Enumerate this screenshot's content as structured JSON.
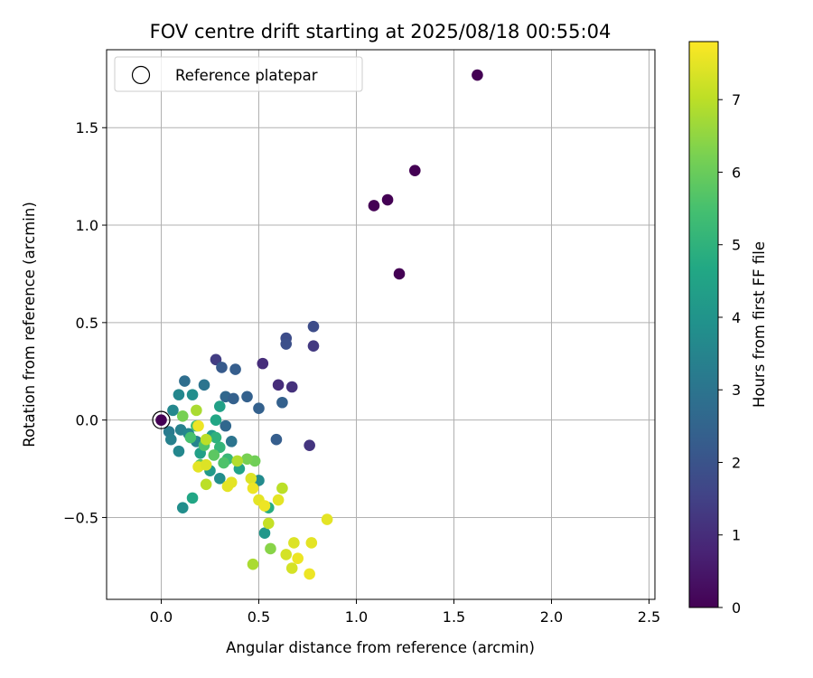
{
  "chart_data": {
    "type": "scatter",
    "title": "FOV centre drift starting at 2025/08/18 00:55:04",
    "xlabel": "Angular distance from reference (arcmin)",
    "ylabel": "Rotation from reference (arcmin)",
    "xlim": [
      -0.28,
      2.53
    ],
    "ylim": [
      -0.92,
      1.9
    ],
    "xticks": [
      0.0,
      0.5,
      1.0,
      1.5,
      2.0,
      2.5
    ],
    "xtick_labels": [
      "0.0",
      "0.5",
      "1.0",
      "1.5",
      "2.0",
      "2.5"
    ],
    "yticks": [
      -0.5,
      0.0,
      0.5,
      1.0,
      1.5
    ],
    "ytick_labels": [
      "−0.5",
      "0.0",
      "0.5",
      "1.0",
      "1.5"
    ],
    "grid": true,
    "legend": {
      "position": "top-left",
      "entries": [
        "Reference platepar"
      ]
    },
    "reference_point": {
      "x": 0.0,
      "y": 0.0
    },
    "colorbar": {
      "label": "Hours from first FF file",
      "range": [
        0,
        7.8
      ],
      "colormap": "viridis",
      "ticks": [
        0,
        1,
        2,
        3,
        4,
        5,
        6,
        7
      ],
      "tick_labels": [
        "0",
        "1",
        "2",
        "3",
        "4",
        "5",
        "6",
        "7"
      ]
    },
    "points": [
      {
        "x": 1.62,
        "y": 1.77,
        "t": 0.0
      },
      {
        "x": 1.3,
        "y": 1.28,
        "t": 0.0
      },
      {
        "x": 1.16,
        "y": 1.13,
        "t": 0.0
      },
      {
        "x": 1.09,
        "y": 1.1,
        "t": 0.0
      },
      {
        "x": 1.22,
        "y": 0.75,
        "t": 0.0
      },
      {
        "x": 0.0,
        "y": 0.0,
        "t": 0.0
      },
      {
        "x": 0.52,
        "y": 0.29,
        "t": 1.0
      },
      {
        "x": 0.6,
        "y": 0.18,
        "t": 1.0
      },
      {
        "x": 0.67,
        "y": 0.17,
        "t": 1.1
      },
      {
        "x": 0.76,
        "y": -0.13,
        "t": 1.2
      },
      {
        "x": 0.78,
        "y": 0.38,
        "t": 1.3
      },
      {
        "x": 0.28,
        "y": 0.31,
        "t": 1.4
      },
      {
        "x": 0.78,
        "y": 0.48,
        "t": 1.8
      },
      {
        "x": 0.64,
        "y": 0.42,
        "t": 1.8
      },
      {
        "x": 0.64,
        "y": 0.39,
        "t": 1.9
      },
      {
        "x": 0.38,
        "y": 0.26,
        "t": 2.3
      },
      {
        "x": 0.31,
        "y": 0.27,
        "t": 2.2
      },
      {
        "x": 0.33,
        "y": 0.12,
        "t": 2.6
      },
      {
        "x": 0.37,
        "y": 0.11,
        "t": 2.4
      },
      {
        "x": 0.44,
        "y": 0.12,
        "t": 2.4
      },
      {
        "x": 0.5,
        "y": 0.06,
        "t": 2.4
      },
      {
        "x": 0.62,
        "y": 0.09,
        "t": 2.4
      },
      {
        "x": 0.59,
        "y": -0.1,
        "t": 2.3
      },
      {
        "x": 0.33,
        "y": -0.03,
        "t": 2.6
      },
      {
        "x": 0.36,
        "y": -0.11,
        "t": 3.0
      },
      {
        "x": 0.12,
        "y": 0.2,
        "t": 2.8
      },
      {
        "x": 0.22,
        "y": 0.18,
        "t": 3.0
      },
      {
        "x": 0.09,
        "y": 0.13,
        "t": 3.6
      },
      {
        "x": 0.16,
        "y": 0.13,
        "t": 3.8
      },
      {
        "x": 0.06,
        "y": 0.05,
        "t": 3.6
      },
      {
        "x": 0.04,
        "y": -0.06,
        "t": 3.2
      },
      {
        "x": 0.05,
        "y": -0.1,
        "t": 3.4
      },
      {
        "x": 0.09,
        "y": -0.16,
        "t": 3.6
      },
      {
        "x": 0.1,
        "y": -0.05,
        "t": 3.4
      },
      {
        "x": 0.14,
        "y": -0.07,
        "t": 3.6
      },
      {
        "x": 0.18,
        "y": -0.11,
        "t": 3.5
      },
      {
        "x": 0.11,
        "y": -0.45,
        "t": 3.8
      },
      {
        "x": 0.16,
        "y": -0.4,
        "t": 4.6
      },
      {
        "x": 0.28,
        "y": 0.0,
        "t": 4.6
      },
      {
        "x": 0.3,
        "y": 0.07,
        "t": 4.4
      },
      {
        "x": 0.26,
        "y": -0.08,
        "t": 4.3
      },
      {
        "x": 0.2,
        "y": -0.17,
        "t": 4.4
      },
      {
        "x": 0.25,
        "y": -0.26,
        "t": 4.2
      },
      {
        "x": 0.3,
        "y": -0.3,
        "t": 3.8
      },
      {
        "x": 0.5,
        "y": -0.31,
        "t": 3.7
      },
      {
        "x": 0.53,
        "y": -0.58,
        "t": 4.1
      },
      {
        "x": 0.55,
        "y": -0.45,
        "t": 4.8
      },
      {
        "x": 0.4,
        "y": -0.25,
        "t": 4.5
      },
      {
        "x": 0.34,
        "y": -0.2,
        "t": 5.2
      },
      {
        "x": 0.3,
        "y": -0.14,
        "t": 5.1
      },
      {
        "x": 0.28,
        "y": -0.09,
        "t": 5.0
      },
      {
        "x": 0.22,
        "y": -0.13,
        "t": 5.6
      },
      {
        "x": 0.18,
        "y": -0.03,
        "t": 5.4
      },
      {
        "x": 0.15,
        "y": -0.09,
        "t": 5.5
      },
      {
        "x": 0.2,
        "y": -0.23,
        "t": 5.9
      },
      {
        "x": 0.32,
        "y": -0.22,
        "t": 5.6
      },
      {
        "x": 0.27,
        "y": -0.18,
        "t": 5.8
      },
      {
        "x": 0.48,
        "y": -0.21,
        "t": 6.1
      },
      {
        "x": 0.44,
        "y": -0.2,
        "t": 6.2
      },
      {
        "x": 0.11,
        "y": 0.02,
        "t": 6.2
      },
      {
        "x": 0.18,
        "y": 0.05,
        "t": 6.8
      },
      {
        "x": 0.56,
        "y": -0.66,
        "t": 6.4
      },
      {
        "x": 0.47,
        "y": -0.74,
        "t": 6.8
      },
      {
        "x": 0.23,
        "y": -0.33,
        "t": 7.0
      },
      {
        "x": 0.39,
        "y": -0.21,
        "t": 6.9
      },
      {
        "x": 0.23,
        "y": -0.1,
        "t": 7.0
      },
      {
        "x": 0.62,
        "y": -0.35,
        "t": 7.0
      },
      {
        "x": 0.55,
        "y": -0.53,
        "t": 7.1
      },
      {
        "x": 0.19,
        "y": -0.03,
        "t": 7.6
      },
      {
        "x": 0.19,
        "y": -0.24,
        "t": 7.5
      },
      {
        "x": 0.23,
        "y": -0.23,
        "t": 7.4
      },
      {
        "x": 0.34,
        "y": -0.34,
        "t": 7.5
      },
      {
        "x": 0.36,
        "y": -0.32,
        "t": 7.5
      },
      {
        "x": 0.46,
        "y": -0.3,
        "t": 7.4
      },
      {
        "x": 0.47,
        "y": -0.35,
        "t": 7.6
      },
      {
        "x": 0.5,
        "y": -0.41,
        "t": 7.5
      },
      {
        "x": 0.53,
        "y": -0.44,
        "t": 7.6
      },
      {
        "x": 0.6,
        "y": -0.41,
        "t": 7.5
      },
      {
        "x": 0.85,
        "y": -0.51,
        "t": 7.5
      },
      {
        "x": 0.64,
        "y": -0.69,
        "t": 7.3
      },
      {
        "x": 0.68,
        "y": -0.63,
        "t": 7.4
      },
      {
        "x": 0.7,
        "y": -0.71,
        "t": 7.6
      },
      {
        "x": 0.77,
        "y": -0.63,
        "t": 7.5
      },
      {
        "x": 0.67,
        "y": -0.76,
        "t": 7.3
      },
      {
        "x": 0.76,
        "y": -0.79,
        "t": 7.6
      }
    ]
  }
}
